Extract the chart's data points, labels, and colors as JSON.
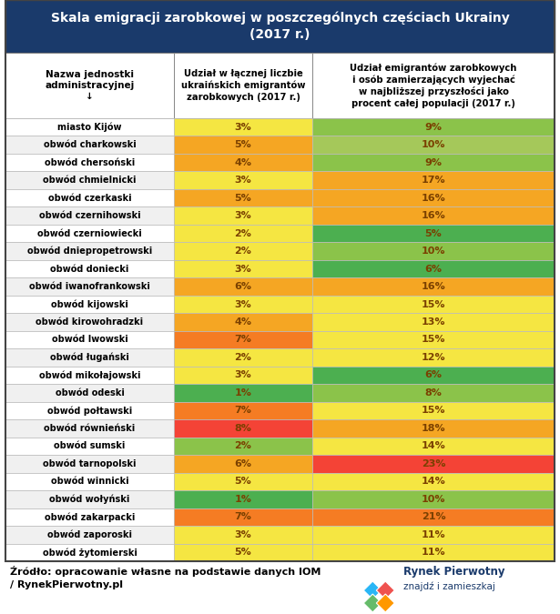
{
  "title_line1": "Skala emigracji zarobkowej w poszczególnych częściach Ukrainy",
  "title_line2": "(2017 r.)",
  "title_bg": "#1a3a6b",
  "title_color": "#ffffff",
  "col1_header": "Nazwa jednostki\nadministracyjnej\n↓",
  "col2_header": "Udział w łącznej liczbie\nukraińskich emigrantów\nzarobkowych (2017 r.)",
  "col3_header": "Udział emigrantów zarobkowych\ni osób zamierzających wyjechać\nw najbliższej przyszłości jako\nprocent całej populacji (2017 r.)",
  "source_text": "Źródło: opracowanie własne na podstawie danych IOM\n/ RynekPierwotny.pl",
  "logo_text1": "Rynek Pierwotny",
  "logo_text2": "znajdź i zamieszkaj",
  "rows": [
    {
      "name": "miasto Kijów",
      "v1": "3%",
      "v2": "9%",
      "c1": "#f5e642",
      "c2": "#8bc34a"
    },
    {
      "name": "obwód charkowski",
      "v1": "5%",
      "v2": "10%",
      "c1": "#f5a623",
      "c2": "#a5c85a"
    },
    {
      "name": "obwód chersoński",
      "v1": "4%",
      "v2": "9%",
      "c1": "#f5a623",
      "c2": "#8bc34a"
    },
    {
      "name": "obwód chmielnicki",
      "v1": "3%",
      "v2": "17%",
      "c1": "#f5e642",
      "c2": "#f5a623"
    },
    {
      "name": "obwód czerkaski",
      "v1": "5%",
      "v2": "16%",
      "c1": "#f5a623",
      "c2": "#f5a623"
    },
    {
      "name": "obwód czernihowski",
      "v1": "3%",
      "v2": "16%",
      "c1": "#f5e642",
      "c2": "#f5a623"
    },
    {
      "name": "obwód czerniowiecki",
      "v1": "2%",
      "v2": "5%",
      "c1": "#f5e642",
      "c2": "#4caf50"
    },
    {
      "name": "obwód dniepropetrowski",
      "v1": "2%",
      "v2": "10%",
      "c1": "#f5e642",
      "c2": "#8bc34a"
    },
    {
      "name": "obwód doniecki",
      "v1": "3%",
      "v2": "6%",
      "c1": "#f5e642",
      "c2": "#4caf50"
    },
    {
      "name": "obwód iwanofrankowski",
      "v1": "6%",
      "v2": "16%",
      "c1": "#f5a623",
      "c2": "#f5a623"
    },
    {
      "name": "obwód kijowski",
      "v1": "3%",
      "v2": "15%",
      "c1": "#f5e642",
      "c2": "#f5e642"
    },
    {
      "name": "obwód kirowohradzki",
      "v1": "4%",
      "v2": "13%",
      "c1": "#f5a623",
      "c2": "#f5e642"
    },
    {
      "name": "obwód lwowski",
      "v1": "7%",
      "v2": "15%",
      "c1": "#f57c23",
      "c2": "#f5e642"
    },
    {
      "name": "obwód ługański",
      "v1": "2%",
      "v2": "12%",
      "c1": "#f5e642",
      "c2": "#f5e642"
    },
    {
      "name": "obwód mikołajowski",
      "v1": "3%",
      "v2": "6%",
      "c1": "#f5e642",
      "c2": "#4caf50"
    },
    {
      "name": "obwód odeski",
      "v1": "1%",
      "v2": "8%",
      "c1": "#4caf50",
      "c2": "#8bc34a"
    },
    {
      "name": "obwód połtawski",
      "v1": "7%",
      "v2": "15%",
      "c1": "#f57c23",
      "c2": "#f5e642"
    },
    {
      "name": "obwód równieński",
      "v1": "8%",
      "v2": "18%",
      "c1": "#f44336",
      "c2": "#f5a623"
    },
    {
      "name": "obwód sumski",
      "v1": "2%",
      "v2": "14%",
      "c1": "#8bc34a",
      "c2": "#f5e642"
    },
    {
      "name": "obwód tarnopolski",
      "v1": "6%",
      "v2": "23%",
      "c1": "#f5a623",
      "c2": "#f44336"
    },
    {
      "name": "obwód winnicki",
      "v1": "5%",
      "v2": "14%",
      "c1": "#f5e642",
      "c2": "#f5e642"
    },
    {
      "name": "obwód wołyński",
      "v1": "1%",
      "v2": "10%",
      "c1": "#4caf50",
      "c2": "#8bc34a"
    },
    {
      "name": "obwód zakarpacki",
      "v1": "7%",
      "v2": "21%",
      "c1": "#f57c23",
      "c2": "#f57c23"
    },
    {
      "name": "obwód zaporoski",
      "v1": "3%",
      "v2": "11%",
      "c1": "#f5e642",
      "c2": "#f5e642"
    },
    {
      "name": "obwód żytomierski",
      "v1": "5%",
      "v2": "11%",
      "c1": "#f5e642",
      "c2": "#f5e642"
    }
  ],
  "fig_width": 6.15,
  "fig_height": 6.75,
  "dpi": 100
}
